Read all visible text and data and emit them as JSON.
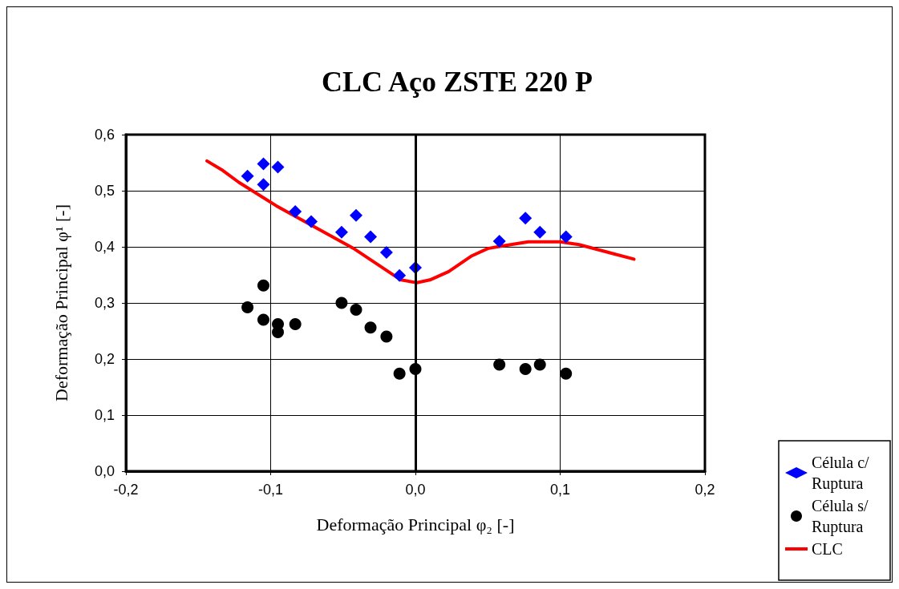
{
  "chart_data": {
    "type": "scatter",
    "title": "CLC Aço ZSTE 220 P",
    "xlabel": "Deformação Principal φ₂ [-]",
    "ylabel": "Deformação Principal φ¹ [-]",
    "xlim": [
      -0.2,
      0.2
    ],
    "ylim": [
      0,
      0.6
    ],
    "xticks": [
      {
        "value": -0.2,
        "label": "-0,2"
      },
      {
        "value": -0.1,
        "label": "-0,1"
      },
      {
        "value": 0,
        "label": "0,0"
      },
      {
        "value": 0.1,
        "label": "0,1"
      },
      {
        "value": 0.2,
        "label": "0,2"
      }
    ],
    "yticks": [
      {
        "value": 0,
        "label": "0,0"
      },
      {
        "value": 0.1,
        "label": "0,1"
      },
      {
        "value": 0.2,
        "label": "0,2"
      },
      {
        "value": 0.3,
        "label": "0,3"
      },
      {
        "value": 0.4,
        "label": "0,4"
      },
      {
        "value": 0.5,
        "label": "0,5"
      },
      {
        "value": 0.6,
        "label": "0,6"
      }
    ],
    "grid": true,
    "legend": "bottom right",
    "ref_lines": [
      {
        "axis": "x",
        "value": 0,
        "color": "#000000"
      }
    ],
    "series": [
      {
        "name": "Célula c/ Ruptura",
        "marker": "diamond",
        "color": "#0000ff",
        "x": [
          -0.116,
          -0.105,
          -0.105,
          -0.095,
          -0.083,
          -0.072,
          -0.051,
          -0.041,
          -0.031,
          -0.02,
          -0.011,
          0,
          0.058,
          0.076,
          0.086,
          0.104
        ],
        "values": [
          0.526,
          0.548,
          0.511,
          0.542,
          0.463,
          0.445,
          0.426,
          0.456,
          0.418,
          0.39,
          0.349,
          0.363,
          0.41,
          0.451,
          0.426,
          0.418
        ]
      },
      {
        "name": "Célula s/ Ruptura",
        "marker": "circle",
        "color": "#000000",
        "x": [
          -0.116,
          -0.105,
          -0.105,
          -0.095,
          -0.095,
          -0.083,
          -0.051,
          -0.041,
          -0.031,
          -0.02,
          -0.011,
          0,
          0.058,
          0.076,
          0.086,
          0.104
        ],
        "values": [
          0.292,
          0.331,
          0.27,
          0.262,
          0.248,
          0.262,
          0.3,
          0.288,
          0.256,
          0.24,
          0.174,
          0.182,
          0.19,
          0.182,
          0.19,
          0.174
        ]
      },
      {
        "name": "CLC",
        "type": "line",
        "marker": "none",
        "line_style": "solid",
        "color": "#ff0000",
        "x": [
          -0.144,
          -0.133,
          -0.122,
          -0.096,
          -0.042,
          -0.01,
          0.001,
          0.01,
          0.023,
          0.039,
          0.05,
          0.059,
          0.078,
          0.1,
          0.113,
          0.151
        ],
        "values": [
          0.553,
          0.536,
          0.515,
          0.473,
          0.396,
          0.341,
          0.336,
          0.341,
          0.356,
          0.384,
          0.397,
          0.401,
          0.409,
          0.409,
          0.404,
          0.378
        ]
      }
    ]
  }
}
